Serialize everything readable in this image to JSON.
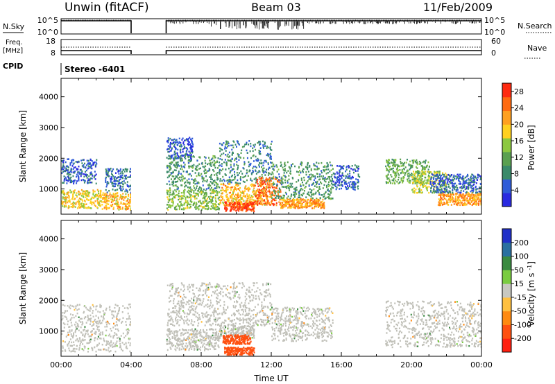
{
  "header": {
    "station": "Unwin (fitACF)",
    "beam": "Beam 03",
    "date": "11/Feb/2009"
  },
  "panels": {
    "nsky": {
      "label": "N.Sky",
      "left_ticks": [
        "10^5",
        "10^0"
      ],
      "right_ticks": [
        "10^5",
        "10^0"
      ],
      "right_label": "N.Search"
    },
    "freq": {
      "label_line1": "Freq.",
      "label_line2": "[MHz]",
      "left_ticks": [
        "18",
        "8"
      ],
      "right_ticks": [
        "60",
        "0"
      ],
      "right_label": "Nave"
    },
    "cpid": {
      "label": "CPID",
      "value": "Stereo -6401"
    }
  },
  "colors": {
    "power_scale": [
      "#2a2ae0",
      "#2f5cd8",
      "#3a8a6a",
      "#5aa050",
      "#8cc840",
      "#ffd020",
      "#ffa020",
      "#ff6a10",
      "#ff2a10"
    ],
    "velocity_scale": [
      "#2030c8",
      "#2a70a0",
      "#3a8a40",
      "#7acc40",
      "#c8c8c0",
      "#ffc040",
      "#ff8a10",
      "#ff5010",
      "#ff2010"
    ],
    "ground_scatter": "#c0c0b8"
  },
  "chart_data": [
    {
      "type": "heatmap",
      "title": "",
      "xlabel": "",
      "ylabel": "Slant Range [km]",
      "x_range": [
        "00:00",
        "24:00"
      ],
      "y_range": [
        180,
        4600
      ],
      "y_ticks": [
        "1000",
        "2000",
        "3000",
        "4000"
      ],
      "colorbar": {
        "label": "Power [dB]",
        "ticks": [
          "4",
          "8",
          "12",
          "16",
          "20",
          "24",
          "28"
        ],
        "range": [
          0,
          30
        ]
      },
      "data_gap": [
        "04:00",
        "06:00"
      ],
      "scatter_regions": [
        {
          "t0": 0.0,
          "t1": 2.3,
          "r0": 400,
          "r1": 1000,
          "level": 18
        },
        {
          "t0": 0.0,
          "t1": 2.0,
          "r0": 1200,
          "r1": 2000,
          "level": 5
        },
        {
          "t0": 2.3,
          "t1": 4.0,
          "r0": 350,
          "r1": 900,
          "level": 20
        },
        {
          "t0": 2.5,
          "t1": 4.0,
          "r0": 900,
          "r1": 1700,
          "level": 6
        },
        {
          "t0": 6.0,
          "t1": 7.5,
          "r0": 2000,
          "r1": 2700,
          "level": 5
        },
        {
          "t0": 6.0,
          "t1": 9.0,
          "r0": 1000,
          "r1": 2100,
          "level": 10
        },
        {
          "t0": 6.0,
          "t1": 9.0,
          "r0": 350,
          "r1": 1000,
          "level": 14
        },
        {
          "t0": 9.0,
          "t1": 12.0,
          "r0": 1200,
          "r1": 2600,
          "level": 8
        },
        {
          "t0": 9.0,
          "t1": 12.0,
          "r0": 500,
          "r1": 1200,
          "level": 20
        },
        {
          "t0": 9.3,
          "t1": 11.0,
          "r0": 300,
          "r1": 600,
          "level": 27
        },
        {
          "t0": 11.0,
          "t1": 12.5,
          "r0": 500,
          "r1": 1400,
          "level": 25
        },
        {
          "t0": 12.0,
          "t1": 15.5,
          "r0": 700,
          "r1": 1900,
          "level": 10
        },
        {
          "t0": 12.5,
          "t1": 15.0,
          "r0": 400,
          "r1": 700,
          "level": 22
        },
        {
          "t0": 15.5,
          "t1": 17.0,
          "r0": 1000,
          "r1": 1800,
          "level": 5
        },
        {
          "t0": 18.5,
          "t1": 21.0,
          "r0": 1200,
          "r1": 2000,
          "level": 12
        },
        {
          "t0": 20.0,
          "t1": 22.0,
          "r0": 900,
          "r1": 1600,
          "level": 16
        },
        {
          "t0": 21.5,
          "t1": 24.0,
          "r0": 500,
          "r1": 900,
          "level": 22
        },
        {
          "t0": 21.0,
          "t1": 24.0,
          "r0": 900,
          "r1": 1500,
          "level": 6
        }
      ]
    },
    {
      "type": "heatmap",
      "title": "",
      "xlabel": "Time UT",
      "ylabel": "Slant Range [km]",
      "x_range": [
        "00:00",
        "24:00"
      ],
      "x_ticks": [
        "00:00",
        "04:00",
        "08:00",
        "12:00",
        "16:00",
        "20:00",
        "00:00"
      ],
      "y_range": [
        180,
        4600
      ],
      "y_ticks": [
        "1000",
        "2000",
        "3000",
        "4000"
      ],
      "colorbar": {
        "label": "Velocity [m s^-1]",
        "ticks": [
          "200",
          "100",
          "50",
          "15",
          "-15",
          "-50",
          "-100",
          "-200"
        ],
        "range": [
          -250,
          250
        ]
      },
      "data_gap": [
        "04:00",
        "06:00"
      ],
      "scatter_regions": [
        {
          "t0": 0.0,
          "t1": 4.0,
          "r0": 350,
          "r1": 1900,
          "vel": 0,
          "ground": true
        },
        {
          "t0": 6.0,
          "t1": 12.0,
          "r0": 1200,
          "r1": 2600,
          "vel": 0,
          "ground": true
        },
        {
          "t0": 6.0,
          "t1": 9.0,
          "r0": 400,
          "r1": 1100,
          "vel": 0,
          "ground": true
        },
        {
          "t0": 9.0,
          "t1": 11.0,
          "r0": 800,
          "r1": 1200,
          "vel": 0,
          "ground": true
        },
        {
          "t0": 9.2,
          "t1": 10.8,
          "r0": 600,
          "r1": 900,
          "vel": -120
        },
        {
          "t0": 9.3,
          "t1": 11.0,
          "r0": 250,
          "r1": 500,
          "vel": -180
        },
        {
          "t0": 12.0,
          "t1": 15.5,
          "r0": 700,
          "r1": 1800,
          "vel": 0,
          "ground": true
        },
        {
          "t0": 18.5,
          "t1": 24.0,
          "r0": 500,
          "r1": 2000,
          "vel": 0,
          "ground": true
        }
      ]
    }
  ]
}
